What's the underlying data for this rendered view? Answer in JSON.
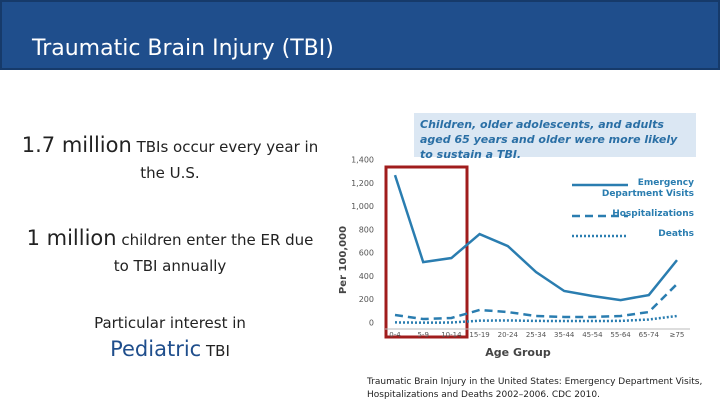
{
  "header": {
    "title": "Traumatic Brain Injury (TBI)"
  },
  "bullets": [
    {
      "lead": "1.7 million",
      "text": "TBIs occur every year in the U.S."
    },
    {
      "lead": "1 million",
      "text": "children enter the ER due to TBI annually"
    },
    {
      "text": "Particular interest in",
      "lead": "Pediatric",
      "tail": "TBI"
    }
  ],
  "chart_data": {
    "type": "line",
    "title": "Children, older adolescents, and adults aged 65 years and older were more likely to sustain a TBI.",
    "x_label": "Age Group",
    "y_label": "Per 100,000",
    "categories": [
      "0-4",
      "5-9",
      "10-14",
      "15-19",
      "20-24",
      "25-34",
      "35-44",
      "45-54",
      "55-64",
      "65-74",
      "≥75"
    ],
    "series": [
      {
        "name": "Emergency Department Visits",
        "color": "#2a7db0",
        "dash": "solid",
        "values": [
          1270,
          523,
          558,
          764,
          661,
          438,
          275,
          232,
          197,
          240,
          540
        ]
      },
      {
        "name": "Hospitalizations",
        "color": "#2a7db0",
        "dash": "dashed",
        "values": [
          69,
          34,
          43,
          112,
          94,
          60,
          52,
          52,
          60,
          94,
          335
        ]
      },
      {
        "name": "Deaths",
        "color": "#2a7db0",
        "dash": "dotted",
        "values": [
          5,
          3,
          4,
          20,
          22,
          18,
          17,
          17,
          18,
          30,
          60
        ]
      }
    ],
    "ylim": [
      0,
      1400
    ],
    "yticks": [
      0,
      200,
      400,
      600,
      800,
      {
        "value": 1000,
        "label": "1,000"
      },
      {
        "value": 1200,
        "label": "1,200"
      },
      {
        "value": 1400,
        "label": "1,400"
      }
    ],
    "grid": false
  },
  "caption": "Traumatic Brain Injury in the United States: Emergency Department Visits, Hospitalizations and Deaths 2002–2006. CDC 2010."
}
